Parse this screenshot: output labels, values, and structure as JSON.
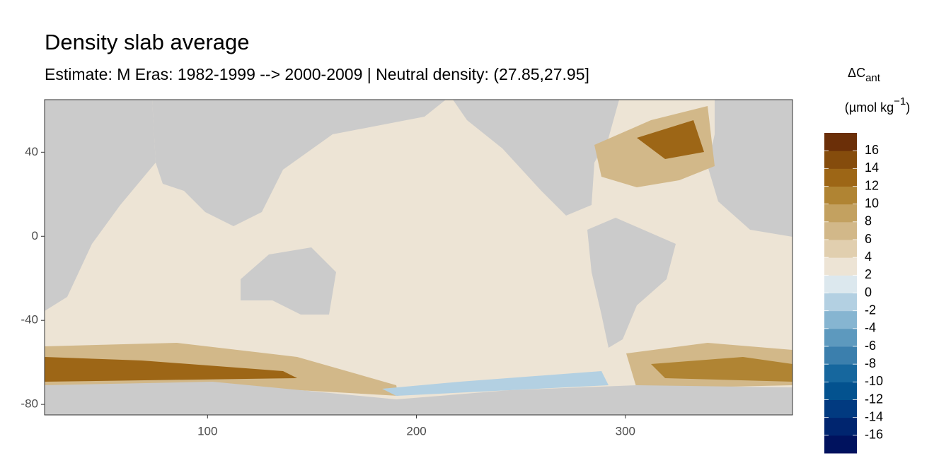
{
  "chart_data": {
    "type": "map",
    "title": "Density slab average",
    "subtitle": "Estimate: M Eras: 1982-1999 --> 2000-2009 | Neutral density: (27.85,27.95]",
    "xlim": [
      22,
      380
    ],
    "xticks": [
      100,
      200,
      300
    ],
    "ylim": [
      -85,
      65
    ],
    "yticks": [
      40,
      0,
      -40,
      -80
    ],
    "colorbar": {
      "title": {
        "symbol": "ΔC",
        "subscript": "ant",
        "unit_start": "(µmol kg",
        "unit_exponent": "−1",
        "unit_end": ")"
      },
      "lim": [
        -18,
        18
      ],
      "ticks": [
        16,
        14,
        12,
        10,
        8,
        6,
        4,
        2,
        0,
        -2,
        -4,
        -6,
        -8,
        -10,
        -12,
        -14,
        -16
      ],
      "colors": [
        "#00125e",
        "#00256f",
        "#013a80",
        "#03528f",
        "#16679e",
        "#3b7fad",
        "#5d99be",
        "#86b5d1",
        "#b3d0e2",
        "#dce8ee",
        "#ede4d5",
        "#e1cfaf",
        "#d2b889",
        "#c3a160",
        "#b08433",
        "#9d6616",
        "#854c0c",
        "#6b2f08"
      ]
    }
  }
}
